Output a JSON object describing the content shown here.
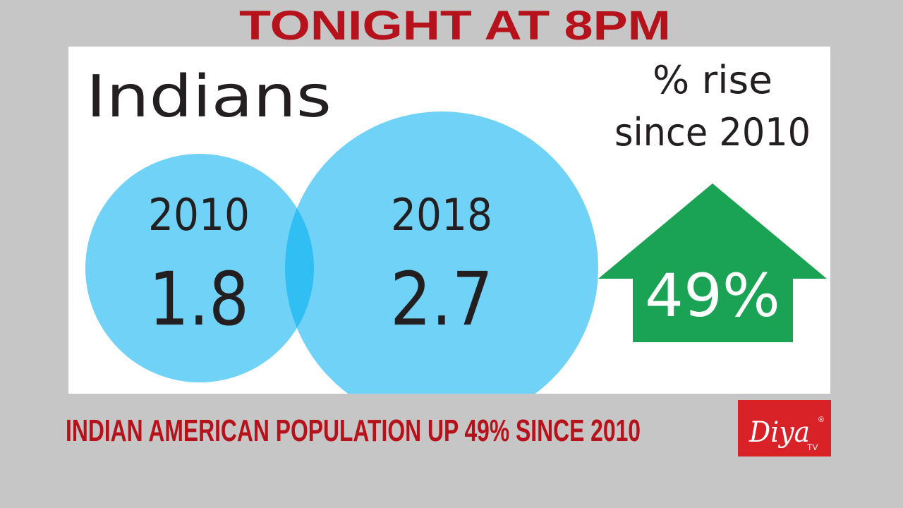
{
  "banner": {
    "title": "TONIGHT AT 8PM"
  },
  "graphic": {
    "title": "Indians",
    "circles": [
      {
        "year": 2010,
        "value": 1.8
      },
      {
        "year": 2018,
        "value": 2.7
      }
    ],
    "rise": {
      "label_lines": [
        "% rise",
        "since 2010"
      ],
      "value": "49%"
    }
  },
  "caption": "INDIAN AMERICAN POPULATION UP 49% SINCE 2010",
  "logo": {
    "name": "Diya",
    "sub": "TV",
    "mark": "®"
  }
}
